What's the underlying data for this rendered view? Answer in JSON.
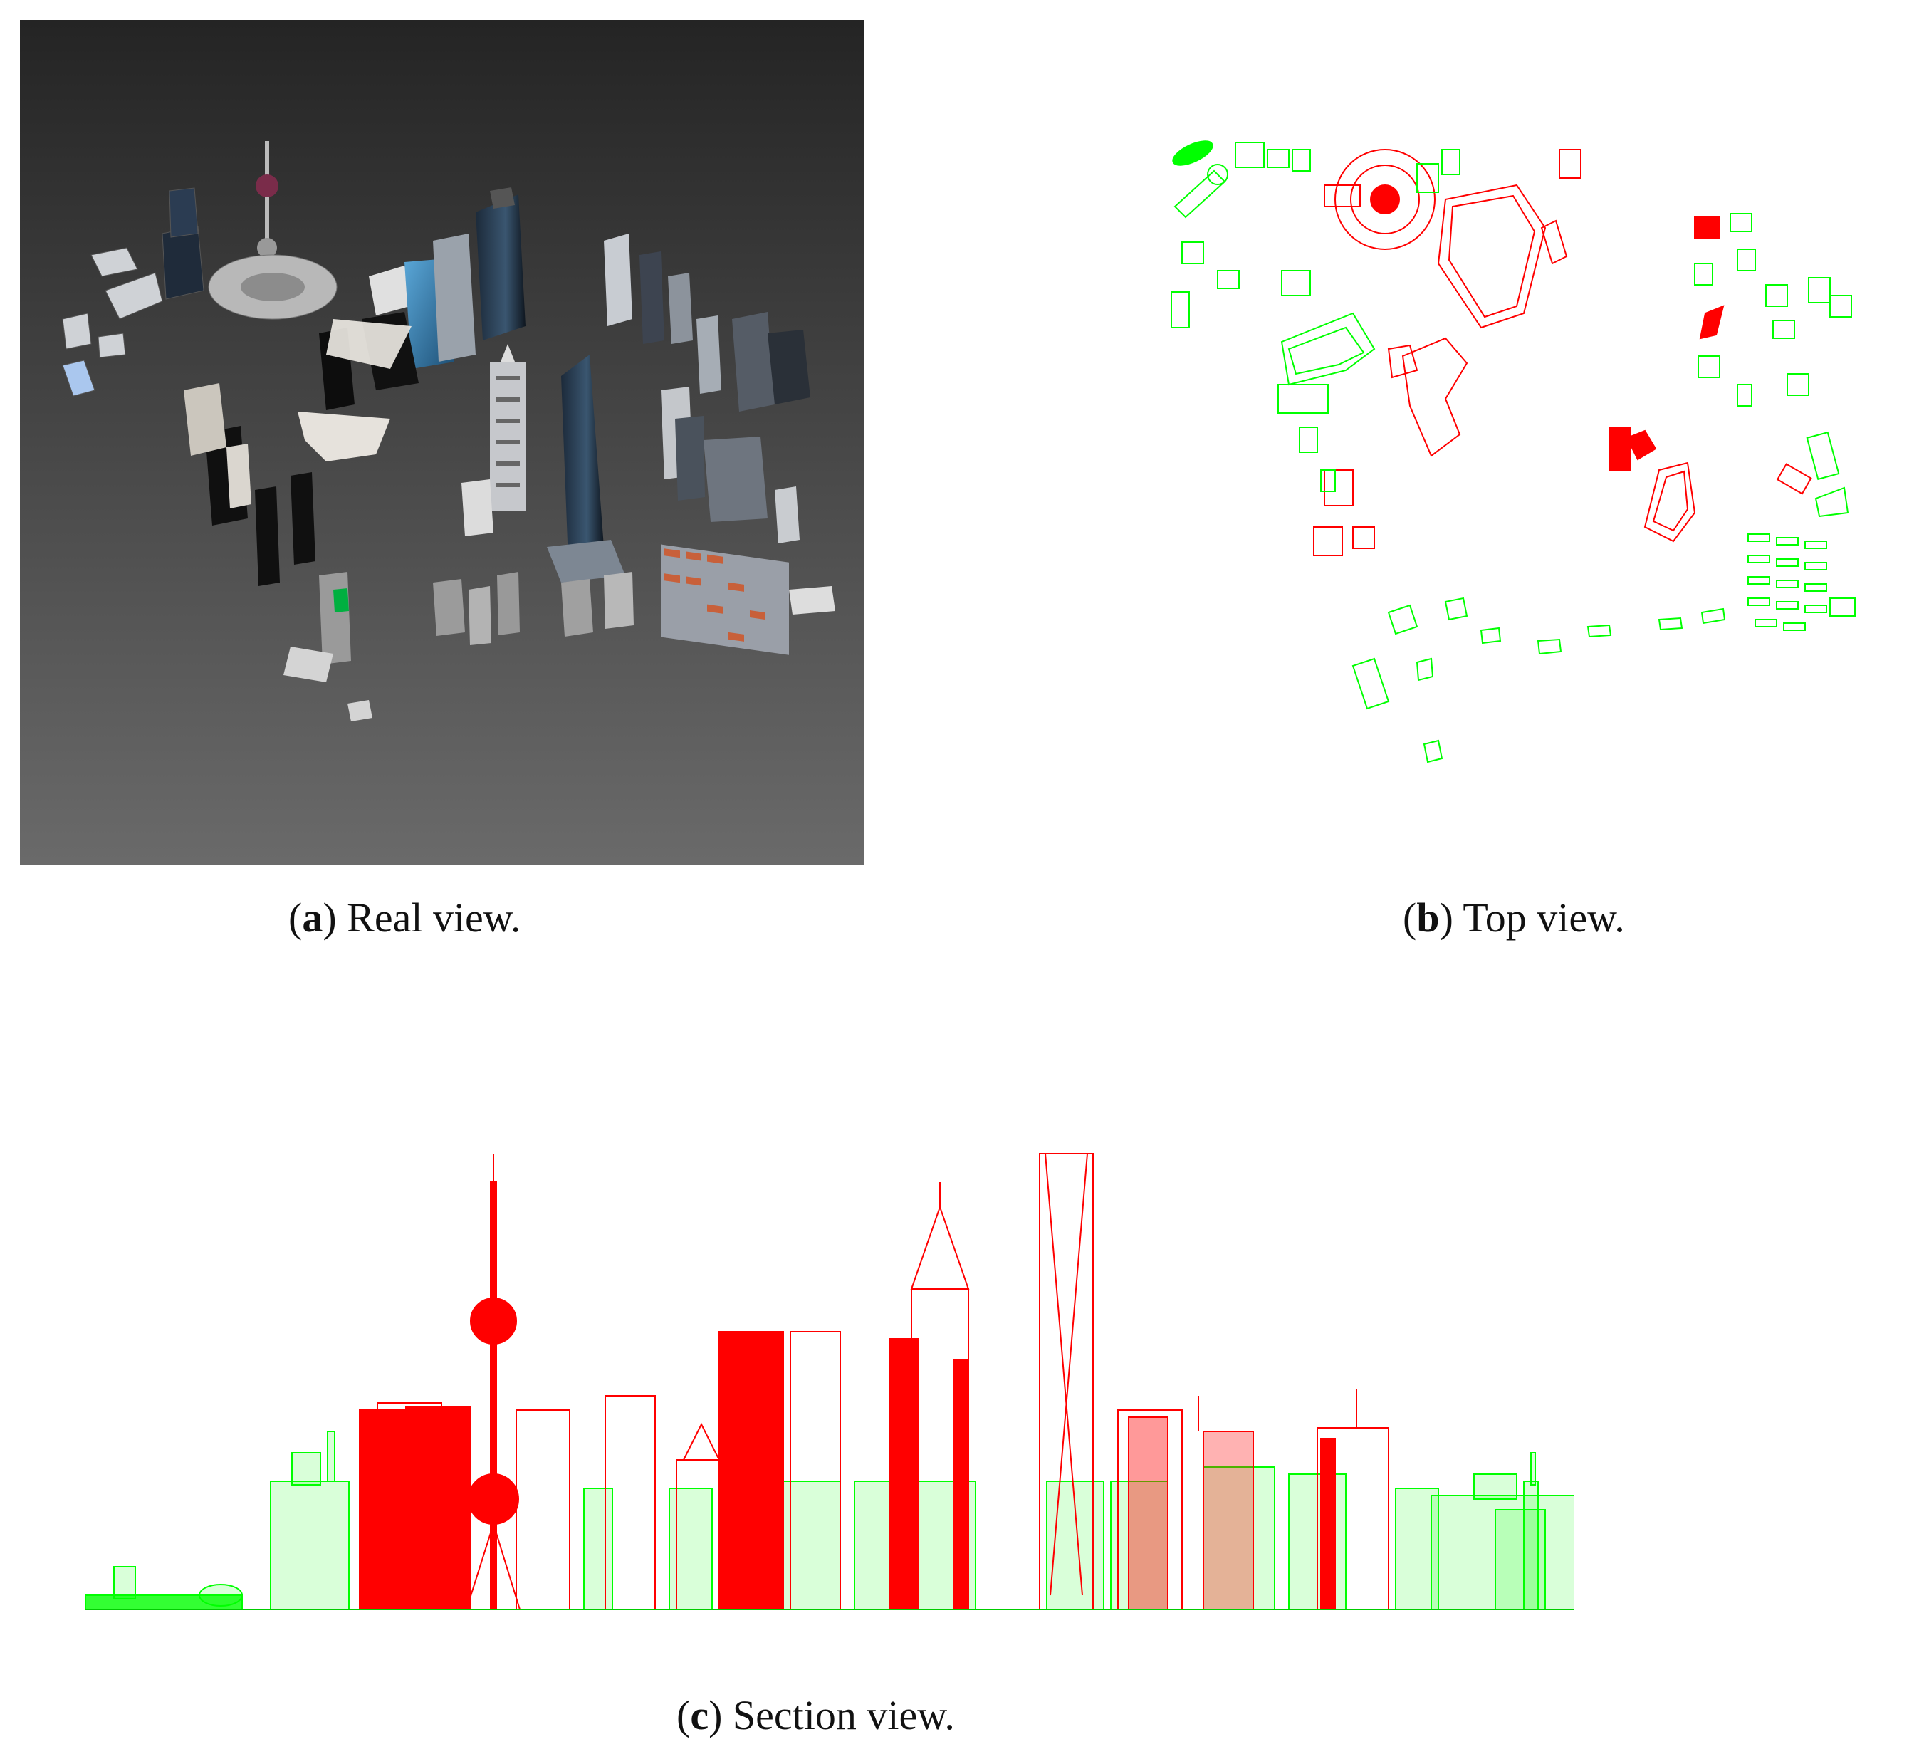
{
  "figure": {
    "panel_a": {
      "label": "a",
      "caption": "Real view."
    },
    "panel_b": {
      "label": "b",
      "caption": "Top view."
    },
    "panel_c": {
      "label": "c",
      "caption": "Section view."
    }
  },
  "colors": {
    "background_dark": "#3a3a3a",
    "highlight_red": "#ff0000",
    "highlight_green": "#00ff00",
    "roof_orange": "#c8603a"
  }
}
